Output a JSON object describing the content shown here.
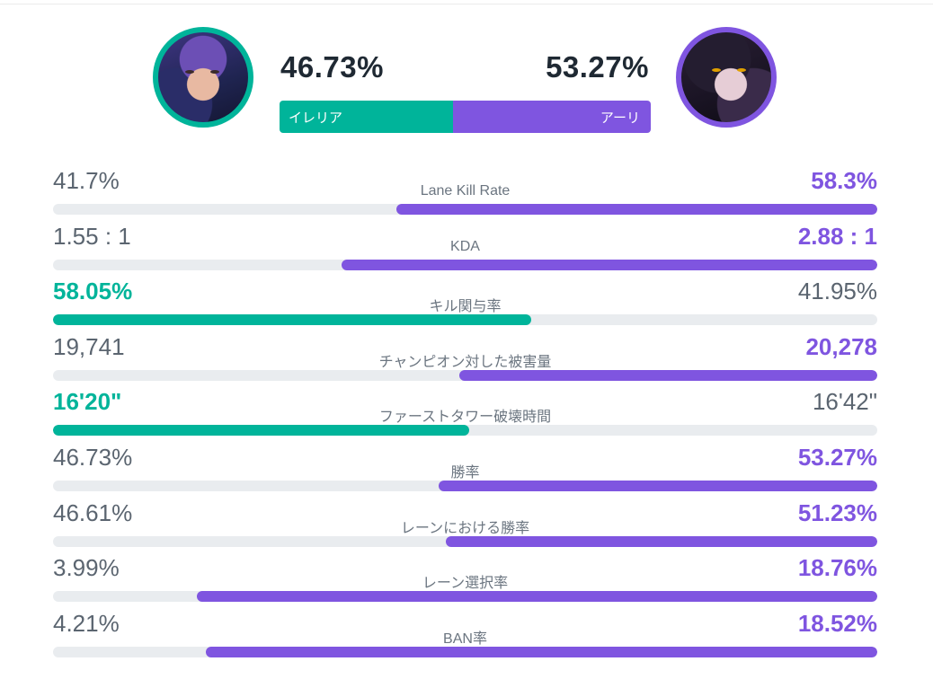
{
  "header": {
    "left": {
      "champion": "イレリア",
      "win_rate": "46.73%",
      "win_rate_value": 46.73,
      "color": "#00b49a"
    },
    "right": {
      "champion": "アーリ",
      "win_rate": "53.27%",
      "win_rate_value": 53.27,
      "color": "#7f55e0"
    }
  },
  "stats": [
    {
      "label": "Lane Kill Rate",
      "left": "41.7%",
      "right": "58.3%",
      "winner": "right",
      "left_share": 41.7
    },
    {
      "label": "KDA",
      "left": "1.55 : 1",
      "right": "2.88 : 1",
      "winner": "right",
      "left_share": 35.0
    },
    {
      "label": "キル関与率",
      "left": "58.05%",
      "right": "41.95%",
      "winner": "left",
      "left_share": 58.05
    },
    {
      "label": "チャンピオン対した被害量",
      "left": "19,741",
      "right": "20,278",
      "winner": "right",
      "left_share": 49.3
    },
    {
      "label": "ファーストタワー破壊時間",
      "left": "16'20\"",
      "right": "16'42\"",
      "winner": "left",
      "left_share": 50.5
    },
    {
      "label": "勝率",
      "left": "46.73%",
      "right": "53.27%",
      "winner": "right",
      "left_share": 46.73
    },
    {
      "label": "レーンにおける勝率",
      "left": "46.61%",
      "right": "51.23%",
      "winner": "right",
      "left_share": 47.6
    },
    {
      "label": "レーン選択率",
      "left": "3.99%",
      "right": "18.76%",
      "winner": "right",
      "left_share": 17.5
    },
    {
      "label": "BAN率",
      "left": "4.21%",
      "right": "18.52%",
      "winner": "right",
      "left_share": 18.5
    }
  ]
}
